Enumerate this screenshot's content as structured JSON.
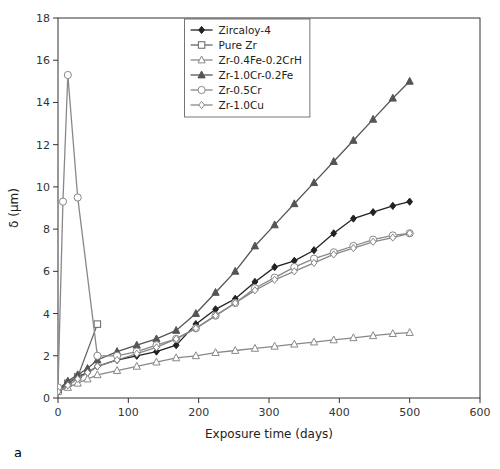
{
  "chart_data": {
    "type": "line",
    "x_label": "Exposure time (days)",
    "y_label": "δ (μm)",
    "annotations": [
      "a"
    ],
    "xlim": [
      0,
      600
    ],
    "ylim": [
      0,
      18
    ],
    "xticks": [
      0,
      100,
      200,
      300,
      400,
      500,
      600
    ],
    "yticks": [
      0,
      2,
      4,
      6,
      8,
      10,
      12,
      14,
      16,
      18
    ],
    "grid": false,
    "legend": "top",
    "series": [
      {
        "name": "Zircaloy-4",
        "color": "#222222",
        "marker": "filled-diamond",
        "x": [
          0,
          14,
          28,
          42,
          56,
          84,
          112,
          140,
          168,
          196,
          224,
          252,
          280,
          308,
          336,
          364,
          392,
          420,
          448,
          476,
          500
        ],
        "values": [
          0.3,
          0.7,
          1.0,
          1.2,
          1.5,
          1.8,
          2.0,
          2.2,
          2.5,
          3.5,
          4.2,
          4.7,
          5.5,
          6.2,
          6.5,
          7.0,
          7.8,
          8.5,
          8.8,
          9.1,
          9.3
        ]
      },
      {
        "name": "Pure Zr",
        "color": "#666666",
        "marker": "open-square",
        "x": [
          0,
          14,
          28,
          56
        ],
        "values": [
          0.4,
          0.7,
          1.0,
          3.5
        ]
      },
      {
        "name": "Zr-0.4Fe-0.2CrH",
        "color": "#888888",
        "marker": "open-triangle",
        "x": [
          0,
          14,
          28,
          42,
          56,
          84,
          112,
          140,
          168,
          196,
          224,
          252,
          280,
          308,
          336,
          364,
          392,
          420,
          448,
          476,
          500
        ],
        "values": [
          0.3,
          0.5,
          0.7,
          0.9,
          1.1,
          1.3,
          1.5,
          1.7,
          1.9,
          2.0,
          2.15,
          2.25,
          2.35,
          2.45,
          2.55,
          2.65,
          2.75,
          2.85,
          2.95,
          3.05,
          3.1
        ]
      },
      {
        "name": "Zr-1.0Cr-0.2Fe",
        "color": "#555555",
        "marker": "filled-triangle",
        "x": [
          0,
          14,
          28,
          42,
          56,
          84,
          112,
          140,
          168,
          196,
          224,
          252,
          280,
          308,
          336,
          364,
          392,
          420,
          448,
          476,
          500
        ],
        "values": [
          0.4,
          0.8,
          1.1,
          1.4,
          1.8,
          2.2,
          2.5,
          2.8,
          3.2,
          4.0,
          5.0,
          6.0,
          7.2,
          8.2,
          9.2,
          10.2,
          11.2,
          12.2,
          13.2,
          14.2,
          15.0
        ]
      },
      {
        "name": "Zr-0.5Cr",
        "color": "#888888",
        "marker": "open-circle",
        "x": [
          0,
          7,
          14,
          28,
          56,
          84,
          112,
          140,
          168,
          196,
          224,
          252,
          280,
          308,
          336,
          364,
          392,
          420,
          448,
          476,
          500
        ],
        "values": [
          0.5,
          9.3,
          15.3,
          9.5,
          2.0,
          2.0,
          2.2,
          2.5,
          2.8,
          3.3,
          3.9,
          4.5,
          5.2,
          5.7,
          6.2,
          6.6,
          6.9,
          7.2,
          7.5,
          7.7,
          7.8
        ]
      },
      {
        "name": "Zr-1.0Cu",
        "color": "#888888",
        "marker": "open-diamond",
        "x": [
          0,
          14,
          28,
          42,
          56,
          84,
          112,
          140,
          168,
          196,
          224,
          252,
          280,
          308,
          336,
          364,
          392,
          420,
          448,
          476,
          500
        ],
        "values": [
          0.3,
          0.6,
          0.9,
          1.2,
          1.5,
          1.8,
          2.1,
          2.4,
          2.8,
          3.3,
          3.9,
          4.5,
          5.1,
          5.6,
          6.0,
          6.4,
          6.8,
          7.1,
          7.4,
          7.6,
          7.8
        ]
      }
    ]
  }
}
